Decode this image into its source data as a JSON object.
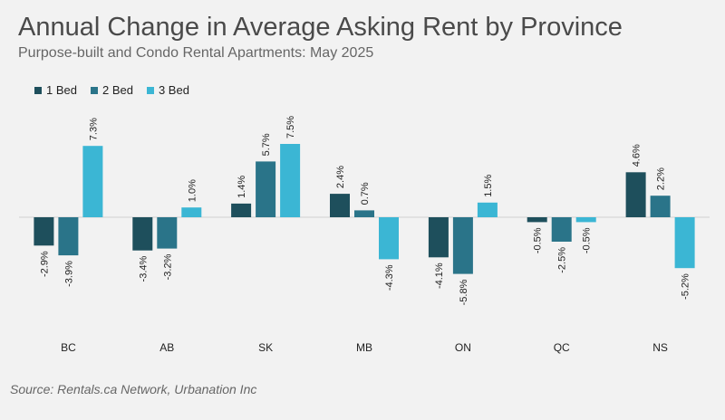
{
  "title": "Annual Change in Average Asking Rent by Province",
  "subtitle": "Purpose-built and Condo Rental Apartments: May 2025",
  "source": "Source: Rentals.ca Network, Urbanation Inc",
  "colors": {
    "1 Bed": "#1e4f5c",
    "2 Bed": "#2a7489",
    "3 Bed": "#3bb6d4"
  },
  "chart_data": {
    "type": "bar",
    "categories": [
      "BC",
      "AB",
      "SK",
      "MB",
      "ON",
      "QC",
      "NS"
    ],
    "series": [
      {
        "name": "1 Bed",
        "values": [
          -2.9,
          -3.4,
          1.4,
          2.4,
          -4.1,
          -0.5,
          4.6
        ]
      },
      {
        "name": "2 Bed",
        "values": [
          -3.9,
          -3.2,
          5.7,
          0.7,
          -5.8,
          -2.5,
          2.2
        ]
      },
      {
        "name": "3 Bed",
        "values": [
          7.3,
          1.0,
          7.5,
          -4.3,
          1.5,
          -0.5,
          -5.2
        ]
      }
    ],
    "value_suffix": "%",
    "legend": "top-left",
    "grid": false
  }
}
